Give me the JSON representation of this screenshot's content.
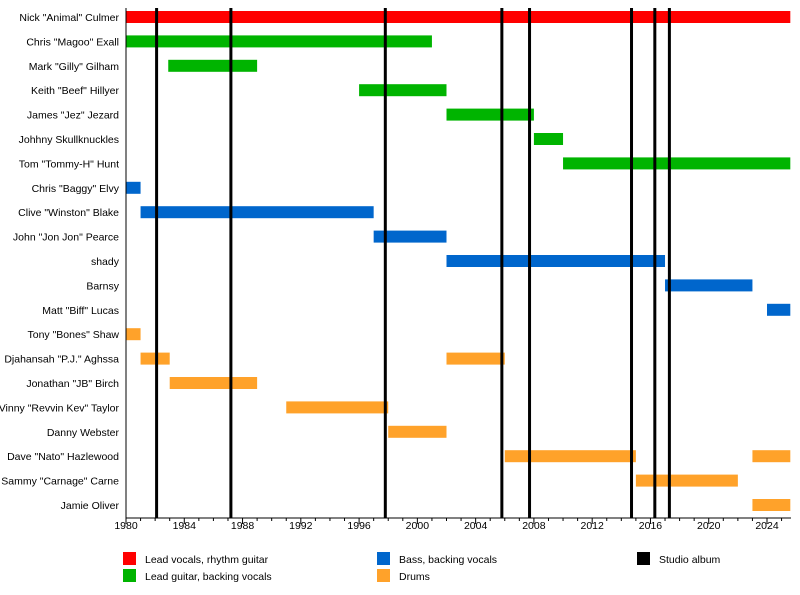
{
  "chart_data": {
    "type": "timeline",
    "xlim": [
      1980,
      2025.6
    ],
    "x_ticks": [
      1980,
      1984,
      1988,
      1992,
      1996,
      2000,
      2004,
      2008,
      2012,
      2016,
      2020,
      2024
    ],
    "roles": [
      {
        "key": "vocals",
        "name": "Lead vocals, rhythm guitar",
        "color": "#FF0000"
      },
      {
        "key": "guitar",
        "name": "Lead guitar, backing vocals",
        "color": "#00B400"
      },
      {
        "key": "bass",
        "name": "Bass, backing vocals",
        "color": "#0066CC"
      },
      {
        "key": "drums",
        "name": "Drums",
        "color": "#FFA22A"
      },
      {
        "key": "album",
        "name": "Studio album",
        "color": "#000000"
      }
    ],
    "members": [
      {
        "name": "Nick \"Animal\" Culmer",
        "role": "vocals",
        "periods": [
          [
            1980,
            2025.6
          ]
        ]
      },
      {
        "name": "Chris \"Magoo\" Exall",
        "role": "guitar",
        "periods": [
          [
            1980,
            2001
          ]
        ]
      },
      {
        "name": "Mark \"Gilly\" Gilham",
        "role": "guitar",
        "periods": [
          [
            1982.9,
            1989
          ]
        ]
      },
      {
        "name": "Keith \"Beef\" Hillyer",
        "role": "guitar",
        "periods": [
          [
            1996,
            2002
          ]
        ]
      },
      {
        "name": "James \"Jez\" Jezard",
        "role": "guitar",
        "periods": [
          [
            2002,
            2008
          ]
        ]
      },
      {
        "name": "Johhny Skullknuckles",
        "role": "guitar",
        "periods": [
          [
            2008,
            2010
          ]
        ]
      },
      {
        "name": "Tom \"Tommy-H\" Hunt",
        "role": "guitar",
        "periods": [
          [
            2010,
            2025.6
          ]
        ]
      },
      {
        "name": "Chris \"Baggy\" Elvy",
        "role": "bass",
        "periods": [
          [
            1980,
            1981
          ]
        ]
      },
      {
        "name": "Clive \"Winston\" Blake",
        "role": "bass",
        "periods": [
          [
            1981,
            1997
          ]
        ]
      },
      {
        "name": "John \"Jon Jon\" Pearce",
        "role": "bass",
        "periods": [
          [
            1997,
            2002
          ]
        ]
      },
      {
        "name": "shady",
        "role": "bass",
        "periods": [
          [
            2002,
            2017
          ]
        ]
      },
      {
        "name": "Barnsy",
        "role": "bass",
        "periods": [
          [
            2017,
            2023
          ]
        ]
      },
      {
        "name": "Matt \"Biff\" Lucas",
        "role": "bass",
        "periods": [
          [
            2024,
            2025.6
          ]
        ]
      },
      {
        "name": "Tony \"Bones\" Shaw",
        "role": "drums",
        "periods": [
          [
            1980,
            1981
          ]
        ]
      },
      {
        "name": "Djahansah \"P.J.\" Aghssa",
        "role": "drums",
        "periods": [
          [
            1981,
            1983
          ],
          [
            2002,
            2006
          ]
        ]
      },
      {
        "name": "Jonathan \"JB\" Birch",
        "role": "drums",
        "periods": [
          [
            1983,
            1989
          ]
        ]
      },
      {
        "name": "Vinny \"Revvin Kev\" Taylor",
        "role": "drums",
        "periods": [
          [
            1991,
            1998
          ]
        ]
      },
      {
        "name": "Danny Webster",
        "role": "drums",
        "periods": [
          [
            1998,
            2002
          ]
        ]
      },
      {
        "name": "Dave \"Nato\" Hazlewood",
        "role": "drums",
        "periods": [
          [
            2006,
            2015
          ],
          [
            2023,
            2025.6
          ]
        ]
      },
      {
        "name": "Sammy \"Carnage\" Carne",
        "role": "drums",
        "periods": [
          [
            2015,
            2022
          ]
        ]
      },
      {
        "name": "Jamie Oliver",
        "role": "drums",
        "periods": [
          [
            2023,
            2025.6
          ]
        ]
      }
    ],
    "albums": [
      1982.1,
      1987.2,
      1997.8,
      2005.8,
      2007.7,
      2014.7,
      2016.3,
      2017.3
    ]
  }
}
